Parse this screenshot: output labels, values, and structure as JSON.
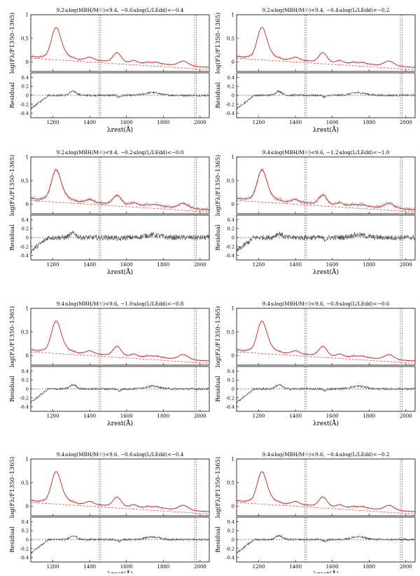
{
  "figure": {
    "x_ticks": [
      "1200",
      "1400",
      "1600",
      "1800",
      "2000"
    ],
    "top_y_ticks": [
      "1",
      "0.5",
      "0"
    ],
    "res_y_ticks": [
      "0.4",
      "0.2",
      "0",
      "-0.2",
      "-0.4"
    ],
    "top_ylabel": "log(Fλ/F1350–1365)",
    "res_ylabel": "Residual",
    "xlabel": "λrest(Å)"
  },
  "chart_data": [
    {
      "type": "line",
      "title": "9.2≤log(MBH/M☉)<9.4, −0.6≤log(L/LEdd)<−0.4",
      "xlim": [
        1080,
        2050
      ],
      "ylim": [
        -0.2,
        1.0
      ],
      "res_ylim": [
        -0.5,
        0.5
      ],
      "vlines": [
        1450,
        1460,
        1970,
        1980
      ]
    },
    {
      "type": "line",
      "title": "9.2≤log(MBH/M☉)<9.4, −0.4≤log(L/LEdd)<−0.2",
      "xlim": [
        1080,
        2050
      ],
      "ylim": [
        -0.2,
        1.0
      ],
      "res_ylim": [
        -0.5,
        0.5
      ],
      "vlines": [
        1450,
        1460,
        1970,
        1980
      ]
    },
    {
      "type": "line",
      "title": "9.2≤log(MBH/M☉)<9.4, −0.2≤log(L/LEdd)<−0.0",
      "xlim": [
        1080,
        2050
      ],
      "ylim": [
        -0.2,
        1.0
      ],
      "res_ylim": [
        -0.5,
        0.5
      ],
      "vlines": [
        1450,
        1460,
        1970,
        1980
      ]
    },
    {
      "type": "line",
      "title": "9.4≤log(MBH/M☉)<9.6, −1.2≤log(L/LEdd)<−1.0",
      "xlim": [
        1080,
        2050
      ],
      "ylim": [
        -0.2,
        1.0
      ],
      "res_ylim": [
        -0.5,
        0.5
      ],
      "vlines": [
        1450,
        1460,
        1970,
        1980
      ]
    },
    {
      "type": "line",
      "title": "9.4≤log(MBH/M☉)<9.6, −1.0≤log(L/LEdd)<−0.8",
      "xlim": [
        1080,
        2050
      ],
      "ylim": [
        -0.2,
        1.0
      ],
      "res_ylim": [
        -0.5,
        0.5
      ],
      "vlines": [
        1450,
        1460,
        1970,
        1980
      ]
    },
    {
      "type": "line",
      "title": "9.4≤log(MBH/M☉)<9.6, −0.8≤log(L/LEdd)<−0.6",
      "xlim": [
        1080,
        2050
      ],
      "ylim": [
        -0.2,
        1.0
      ],
      "res_ylim": [
        -0.5,
        0.5
      ],
      "vlines": [
        1450,
        1460,
        1970,
        1980
      ]
    },
    {
      "type": "line",
      "title": "9.4≤log(MBH/M☉)<9.6, −0.6≤log(L/LEdd)<−0.4",
      "xlim": [
        1080,
        2050
      ],
      "ylim": [
        -0.2,
        1.0
      ],
      "res_ylim": [
        -0.5,
        0.5
      ],
      "vlines": [
        1450,
        1460,
        1970,
        1980
      ]
    },
    {
      "type": "line",
      "title": "9.4≤log(MBH/M☉)<9.6, −0.4≤log(L/LEdd)<−0.2",
      "xlim": [
        1080,
        2050
      ],
      "ylim": [
        -0.2,
        1.0
      ],
      "res_ylim": [
        -0.5,
        0.5
      ],
      "vlines": [
        1450,
        1460,
        1970,
        1980
      ]
    }
  ],
  "colors": {
    "fit_line": "#d62728",
    "continuum": "#e8463a",
    "spectrum": "#444444",
    "spectrum_masked": "#aaaaaa",
    "zero_line": "#000000"
  }
}
